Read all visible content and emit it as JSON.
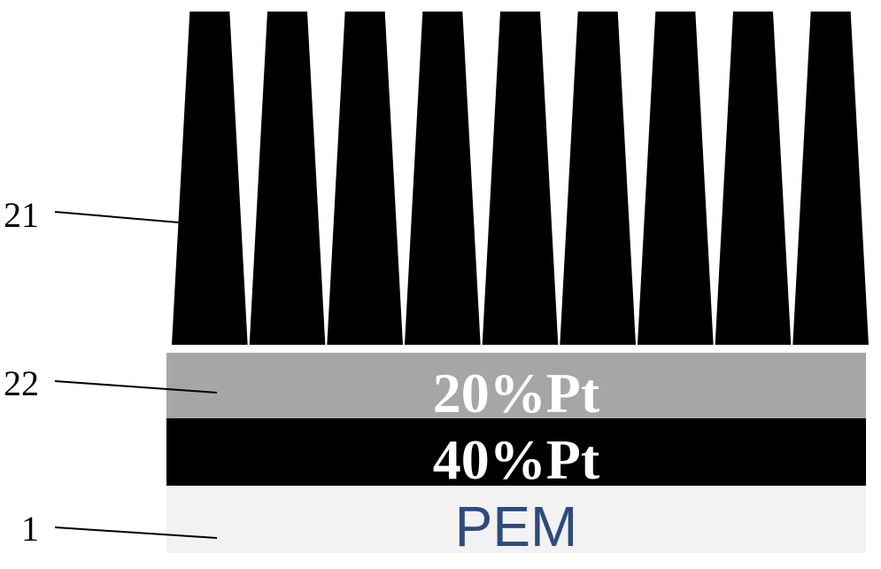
{
  "references": [
    {
      "id": "ref-21",
      "text": "21"
    },
    {
      "id": "ref-22",
      "text": "22"
    },
    {
      "id": "ref-1",
      "text": "1"
    }
  ],
  "layers": [
    {
      "id": "layer-20pt",
      "label": "20%Pt",
      "fill": "#a6a6a6",
      "text_color": "#ffffff"
    },
    {
      "id": "layer-40pt",
      "label": "40%Pt",
      "fill": "#000000",
      "text_color": "#ffffff"
    },
    {
      "id": "layer-pem",
      "label": "PEM",
      "fill": "#f2f2f2",
      "text_color": "#2f4b7c"
    }
  ],
  "microstructure": {
    "count": 9,
    "fill": "#000000"
  }
}
